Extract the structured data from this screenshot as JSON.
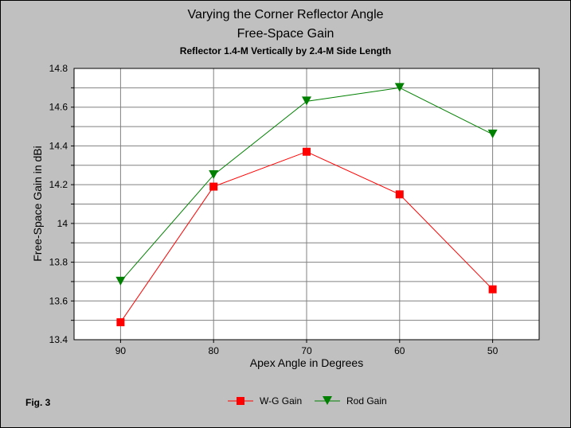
{
  "chart_data": {
    "type": "line",
    "title": "Varying the Corner Reflector Angle",
    "title2": "Free-Space Gain",
    "subtitle": "Reflector 1.4-M Vertically by 2.4-M Side Length",
    "xlabel": "Apex Angle in Degrees",
    "ylabel": "Free-Space Gain in dBi",
    "categories": [
      "90",
      "80",
      "70",
      "60",
      "50"
    ],
    "ylim": [
      13.4,
      14.8
    ],
    "yticks": [
      "13.4",
      "13.6",
      "13.8",
      "14",
      "14.2",
      "14.4",
      "14.6",
      "14.8"
    ],
    "grid": true,
    "legend": "bottom-center",
    "series": [
      {
        "name": "W-G Gain",
        "color": "#ff0000",
        "marker": "square",
        "values": [
          13.49,
          14.19,
          14.37,
          14.15,
          13.66
        ]
      },
      {
        "name": "Rod Gain",
        "color": "#008000",
        "marker": "triangle-down",
        "values": [
          13.7,
          14.25,
          14.63,
          14.7,
          14.46
        ]
      }
    ]
  },
  "footnote": "Fig. 3"
}
